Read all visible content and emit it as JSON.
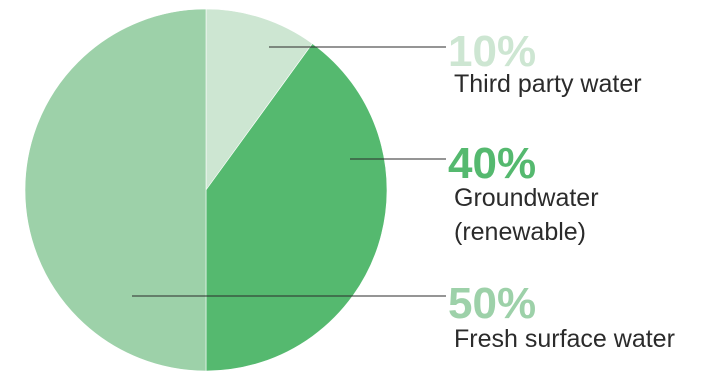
{
  "chart_data": {
    "type": "pie",
    "start_angle_deg": 0,
    "direction": "clockwise",
    "slices": [
      {
        "value": 10,
        "percent_label": "10%",
        "label_lines": [
          "Third party water"
        ],
        "color": "#cde6d2",
        "text_color": "#cde6d2"
      },
      {
        "value": 40,
        "percent_label": "40%",
        "label_lines": [
          "Groundwater",
          "(renewable)"
        ],
        "color": "#55b96f",
        "text_color": "#55b96f"
      },
      {
        "value": 50,
        "percent_label": "50%",
        "label_lines": [
          "Fresh surface water"
        ],
        "color": "#9dd1a9",
        "text_color": "#9dd1a9"
      }
    ]
  }
}
